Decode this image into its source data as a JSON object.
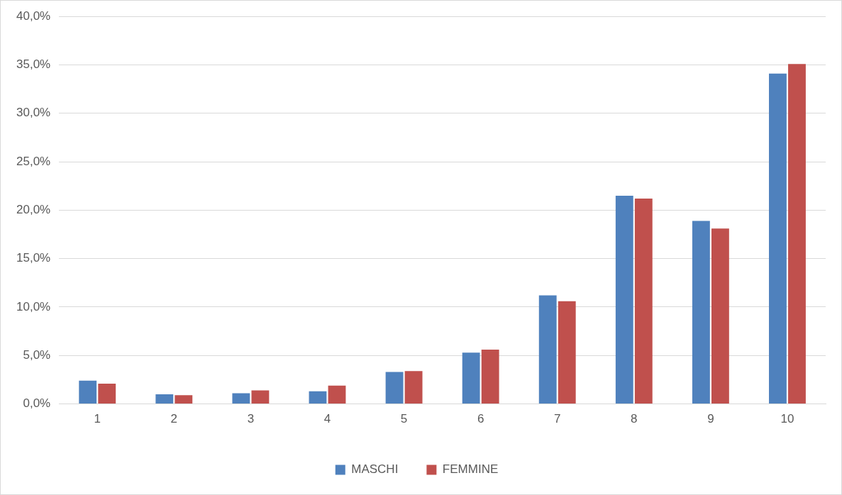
{
  "chart_data": {
    "type": "bar",
    "categories": [
      "1",
      "2",
      "3",
      "4",
      "5",
      "6",
      "7",
      "8",
      "9",
      "10"
    ],
    "series": [
      {
        "name": "MASCHI",
        "color": "#4f81bd",
        "values": [
          2.4,
          1.0,
          1.1,
          1.3,
          3.3,
          5.3,
          11.2,
          21.5,
          18.9,
          34.1
        ]
      },
      {
        "name": "FEMMINE",
        "color": "#c0504d",
        "values": [
          2.1,
          0.9,
          1.4,
          1.9,
          3.4,
          5.6,
          10.6,
          21.2,
          18.1,
          35.1
        ]
      }
    ],
    "ylim": [
      0,
      40
    ],
    "yticks": [
      {
        "value": 0,
        "label": "0,0%"
      },
      {
        "value": 5,
        "label": "5,0%"
      },
      {
        "value": 10,
        "label": "10,0%"
      },
      {
        "value": 15,
        "label": "15,0%"
      },
      {
        "value": 20,
        "label": "20,0%"
      },
      {
        "value": 25,
        "label": "25,0%"
      },
      {
        "value": 30,
        "label": "30,0%"
      },
      {
        "value": 35,
        "label": "35,0%"
      },
      {
        "value": 40,
        "label": "40,0%"
      }
    ],
    "grid": "y",
    "legend": "bottom"
  }
}
